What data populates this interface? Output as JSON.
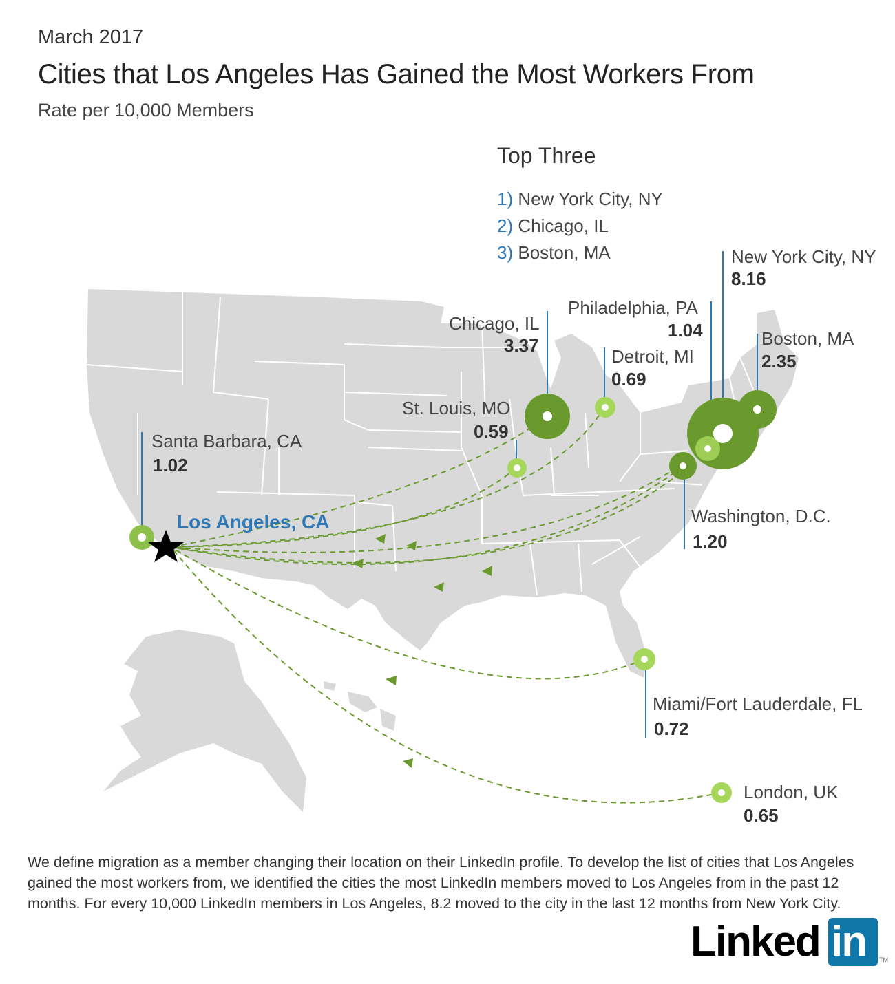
{
  "header": {
    "date": "March 2017",
    "title": "Cities that Los Angeles Has Gained the Most Workers From",
    "subtitle": "Rate per 10,000 Members"
  },
  "top_three": {
    "title": "Top Three",
    "items": [
      {
        "num": "1)",
        "city": "New York City, NY"
      },
      {
        "num": "2)",
        "city": "Chicago, IL"
      },
      {
        "num": "3)",
        "city": "Boston, MA"
      }
    ]
  },
  "destination": {
    "name": "Los Angeles, CA",
    "marker": "star-icon"
  },
  "cities": [
    {
      "id": "santa-barbara",
      "name": "Santa Barbara, CA",
      "value": "1.02"
    },
    {
      "id": "st-louis",
      "name": "St. Louis, MO",
      "value": "0.59"
    },
    {
      "id": "chicago",
      "name": "Chicago, IL",
      "value": "3.37"
    },
    {
      "id": "detroit",
      "name": "Detroit, MI",
      "value": "0.69"
    },
    {
      "id": "philadelphia",
      "name": "Philadelphia, PA",
      "value": "1.04"
    },
    {
      "id": "new-york",
      "name": "New York City, NY",
      "value": "8.16"
    },
    {
      "id": "boston",
      "name": "Boston, MA",
      "value": "2.35"
    },
    {
      "id": "washington",
      "name": "Washington, D.C.",
      "value": "1.20"
    },
    {
      "id": "miami",
      "name": "Miami/Fort Lauderdale, FL",
      "value": "0.72"
    },
    {
      "id": "london",
      "name": "London, UK",
      "value": "0.65"
    }
  ],
  "colors": {
    "land": "#d9d9d9",
    "border": "#ffffff",
    "dark_green": "#6a9a2e",
    "light_green": "#a6d65a",
    "arrow": "#6a9a2e",
    "leader": "#2e78b7",
    "accent": "#2e78b7"
  },
  "footnote": "We define migration as a member changing their location on their LinkedIn profile. To develop the list of cities that Los Angeles gained the most workers from, we identified the cities the most LinkedIn members moved to Los Angeles from in the past 12 months. For every 10,000 LinkedIn members in Los Angeles, 8.2 moved to the city in the last 12 months from New York City.",
  "logo": {
    "text": "Linked",
    "box": "in",
    "tm": "TM"
  }
}
